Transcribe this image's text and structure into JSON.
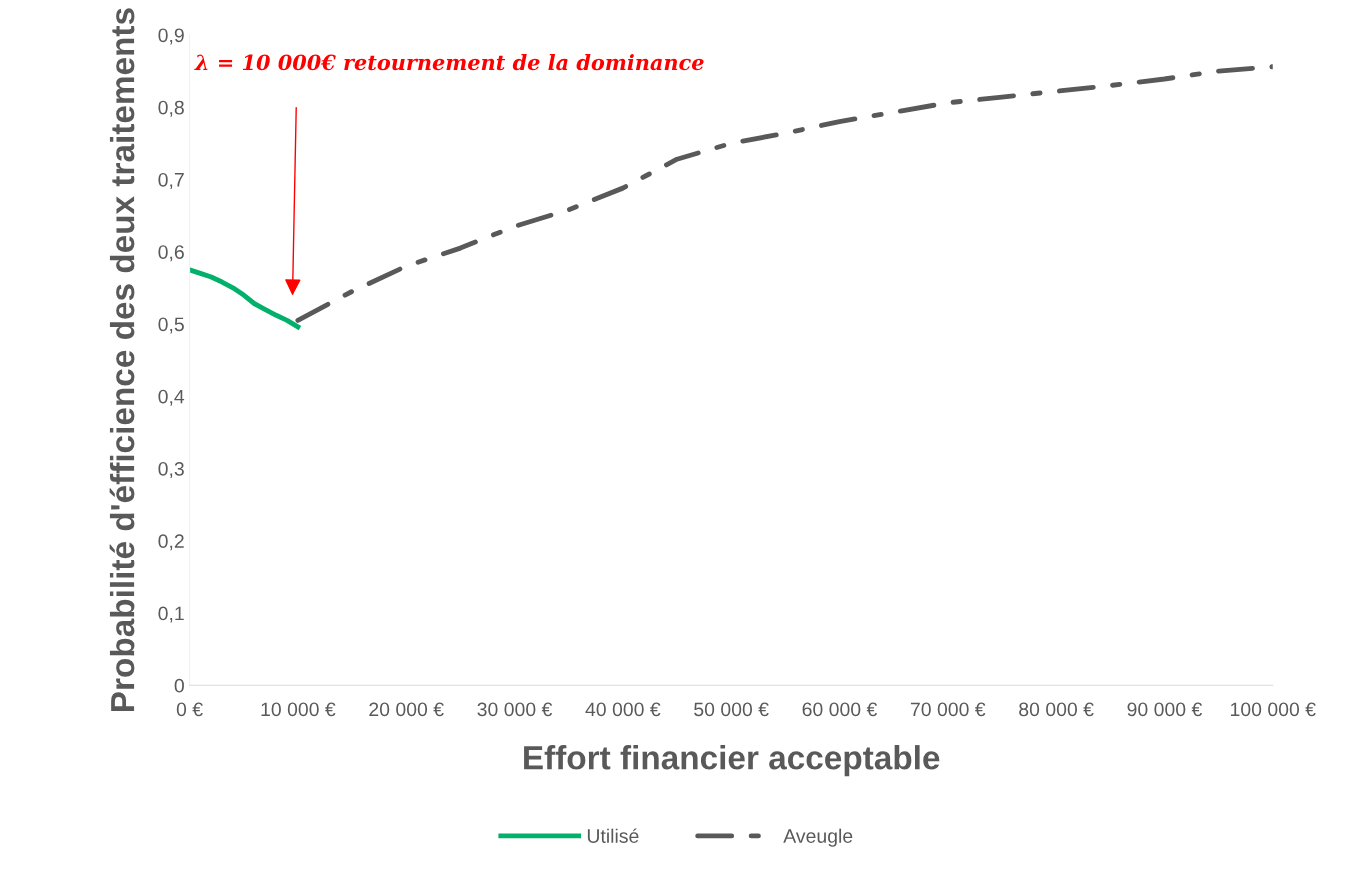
{
  "chart_data": {
    "type": "line",
    "xlabel": "Effort financier acceptable",
    "ylabel": "Probabilité d'éfficience des deux traitements",
    "annotations": [
      "λ = 10 000€ retournement de la dominance"
    ],
    "series": [
      {
        "name": "Utilisé",
        "color": "#00b06b",
        "line_style": "solid",
        "x": [
          0,
          1000,
          2000,
          3000,
          4000,
          5000,
          6000,
          7000,
          8000,
          9000,
          10000
        ],
        "values": [
          0.575,
          0.57,
          0.565,
          0.558,
          0.55,
          0.54,
          0.528,
          0.52,
          0.512,
          0.505,
          0.496
        ]
      },
      {
        "name": "Aveugle",
        "color": "#595959",
        "line_style": "dashed",
        "x": [
          10000,
          15000,
          20000,
          25000,
          30000,
          35000,
          40000,
          45000,
          50000,
          55000,
          60000,
          65000,
          70000,
          75000,
          80000,
          85000,
          90000,
          95000,
          100000
        ],
        "values": [
          0.505,
          0.545,
          0.58,
          0.605,
          0.635,
          0.658,
          0.688,
          0.728,
          0.75,
          0.764,
          0.78,
          0.793,
          0.806,
          0.814,
          0.822,
          0.83,
          0.839,
          0.85,
          0.856
        ]
      }
    ],
    "xlim": [
      0,
      100000
    ],
    "xticks": [
      {
        "value": 0,
        "label": "0 €"
      },
      {
        "value": 10000,
        "label": "10 000 €"
      },
      {
        "value": 20000,
        "label": "20 000 €"
      },
      {
        "value": 30000,
        "label": "30 000 €"
      },
      {
        "value": 40000,
        "label": "40 000 €"
      },
      {
        "value": 50000,
        "label": "50 000 €"
      },
      {
        "value": 60000,
        "label": "60 000 €"
      },
      {
        "value": 70000,
        "label": "70 000 €"
      },
      {
        "value": 80000,
        "label": "80 000 €"
      },
      {
        "value": 90000,
        "label": "90 000 €"
      },
      {
        "value": 100000,
        "label": "100 000 €"
      }
    ],
    "ylim": [
      0,
      0.9
    ],
    "yticks": [
      0,
      {
        "value": 0.1,
        "label": "0,1"
      },
      {
        "value": 0.2,
        "label": "0,2"
      },
      {
        "value": 0.3,
        "label": "0,3"
      },
      {
        "value": 0.4,
        "label": "0,4"
      },
      {
        "value": 0.5,
        "label": "0,5"
      },
      {
        "value": 0.6,
        "label": "0,6"
      },
      {
        "value": 0.7,
        "label": "0,7"
      },
      {
        "value": 0.8,
        "label": "0,8"
      },
      {
        "value": 0.9,
        "label": "0,9"
      }
    ],
    "grid": false,
    "legend": "bottom",
    "marker": "none"
  }
}
